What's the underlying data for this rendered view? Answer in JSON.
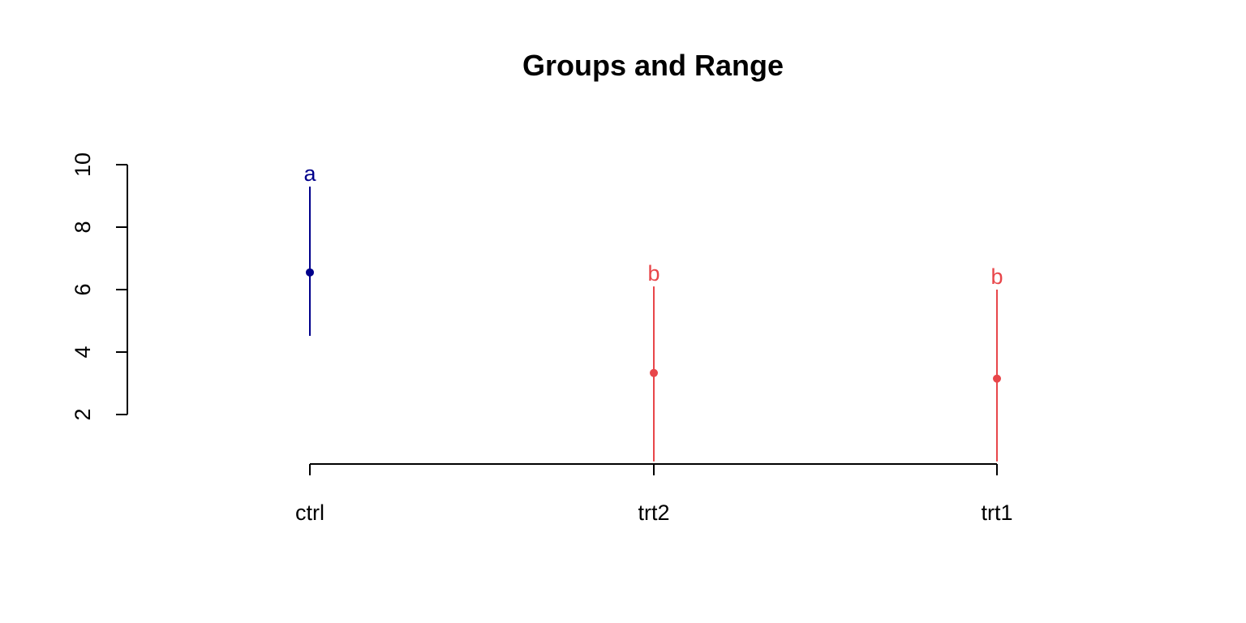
{
  "chart_data": {
    "type": "scatter",
    "title": "Groups and Range",
    "xlabel": "",
    "ylabel": "",
    "categories": [
      "ctrl",
      "trt2",
      "trt1"
    ],
    "means": [
      6.55,
      3.33,
      3.15
    ],
    "range_low": [
      4.52,
      0.5,
      0.5
    ],
    "range_high": [
      9.3,
      6.1,
      6.0
    ],
    "group_letters": [
      "a",
      "b",
      "b"
    ],
    "colors": [
      "#00008B",
      "#E8464A",
      "#E8464A"
    ],
    "yticks": [
      2,
      4,
      6,
      8,
      10
    ],
    "ytick_labels": [
      "2",
      "4",
      "6",
      "8",
      "10"
    ],
    "ylim": [
      0.5,
      10.5
    ],
    "grid": false
  }
}
